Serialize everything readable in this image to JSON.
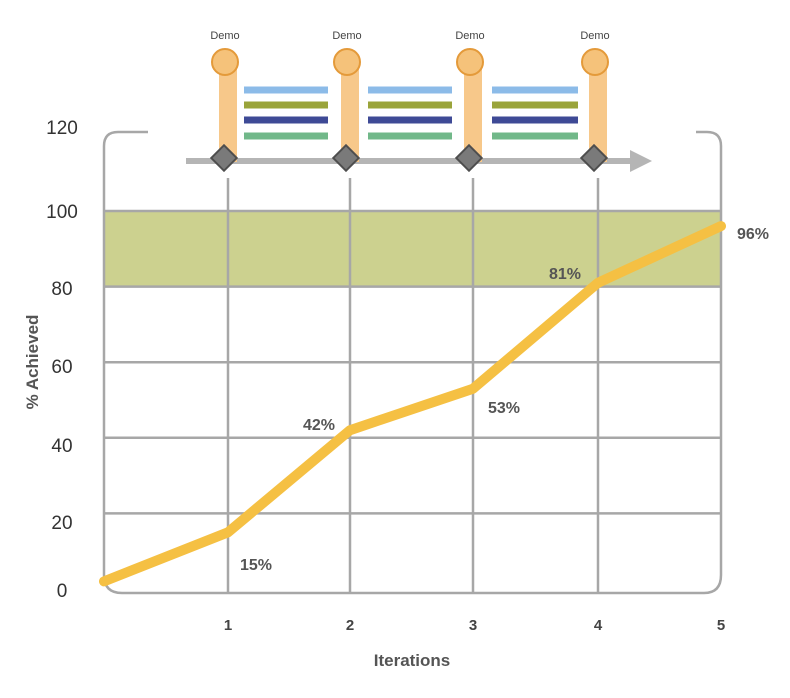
{
  "chart_data": {
    "type": "line",
    "xlabel": "Iterations",
    "ylabel": "% Achieved",
    "x": [
      0,
      1,
      2,
      3,
      4,
      5
    ],
    "y": [
      2,
      15,
      42,
      53,
      81,
      96
    ],
    "x_tick_labels": [
      "1",
      "2",
      "3",
      "4",
      "5"
    ],
    "y_ticks": [
      "0",
      "20",
      "40",
      "60",
      "80",
      "100",
      "120"
    ],
    "point_labels": [
      "",
      "15%",
      "42%",
      "53%",
      "81%",
      "96%"
    ],
    "xlim": [
      0,
      5
    ],
    "ylim": [
      0,
      120
    ],
    "target_band": [
      80,
      100
    ],
    "grid": true,
    "colors": {
      "line": "#f5c043",
      "band": "#ccd18f",
      "grid": "#a7a7a7",
      "stripes": [
        "#8cbbe8",
        "#9aa43a",
        "#3e4a96",
        "#71b889"
      ]
    },
    "timeline": {
      "milestone_label": "Demo",
      "milestones": [
        1,
        2,
        3,
        4
      ],
      "icons": [
        "circle-icon",
        "diamond-icon",
        "arrow-icon"
      ]
    }
  }
}
